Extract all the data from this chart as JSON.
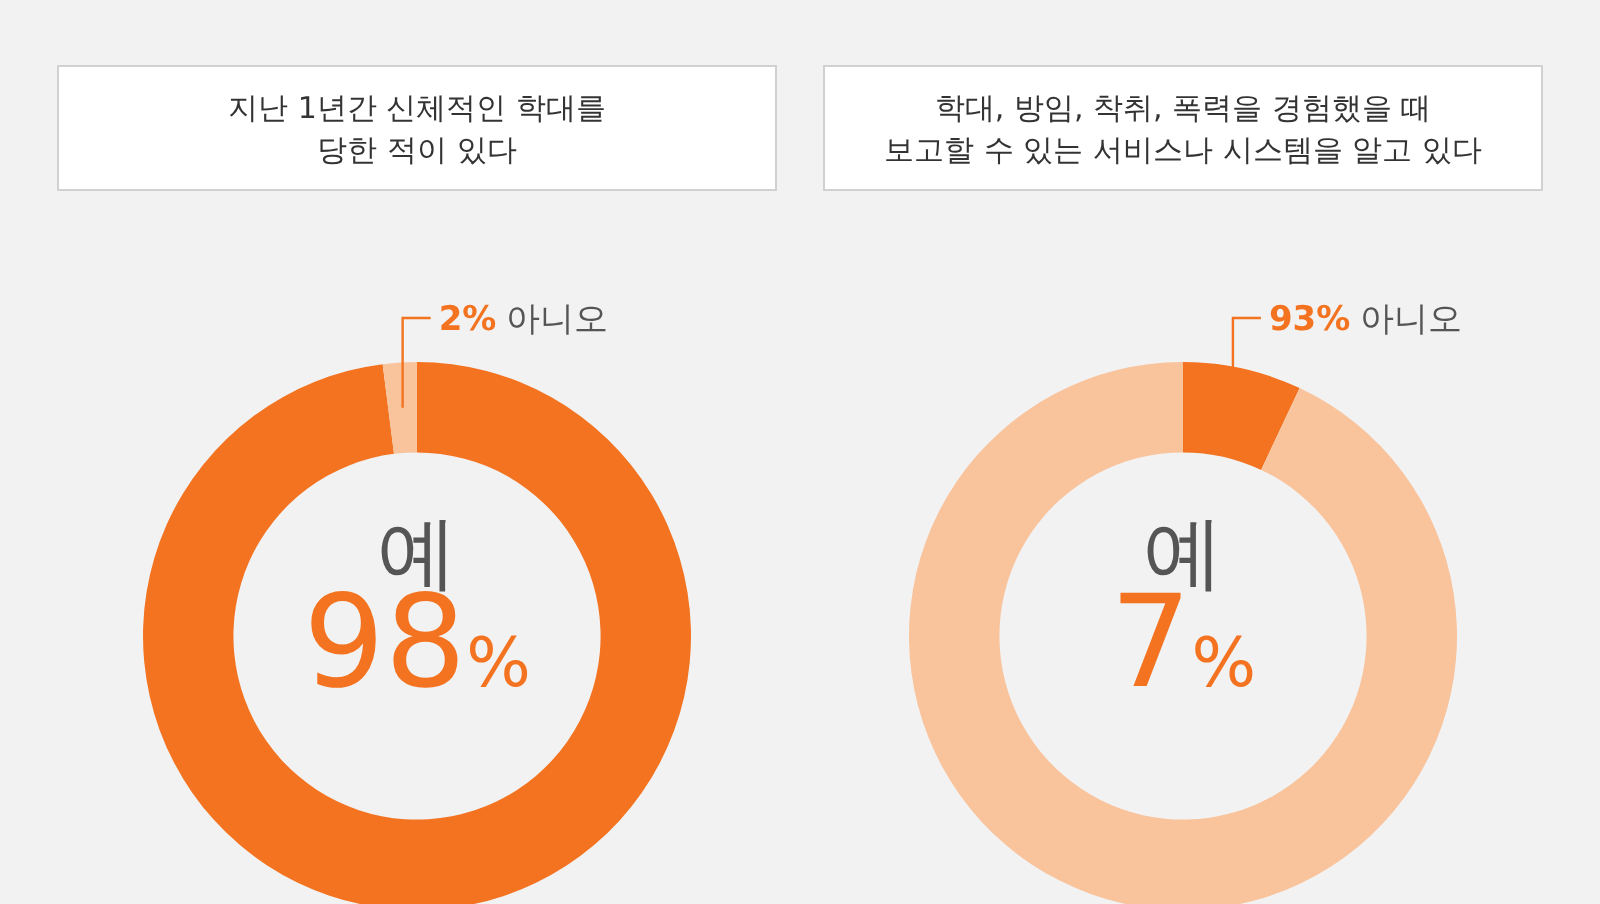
{
  "chart_data": [
    {
      "type": "donut",
      "title": "지난 1년간 신체적인 학대를\n당한 적이 있다",
      "categories": [
        "예",
        "아니오"
      ],
      "values": [
        98,
        2
      ],
      "colors": [
        "#f47321",
        "#f9c39c"
      ],
      "value_labels": [
        "98%",
        "2%"
      ]
    },
    {
      "type": "donut",
      "title": "학대, 방임, 착취, 폭력을 경험했을 때\n보고할 수 있는 서비스나 시스템을 알고 있다",
      "categories": [
        "예",
        "아니오"
      ],
      "values": [
        7,
        93
      ],
      "colors": [
        "#f47321",
        "#f9c39c"
      ],
      "value_labels": [
        "7%",
        "93%"
      ]
    }
  ]
}
